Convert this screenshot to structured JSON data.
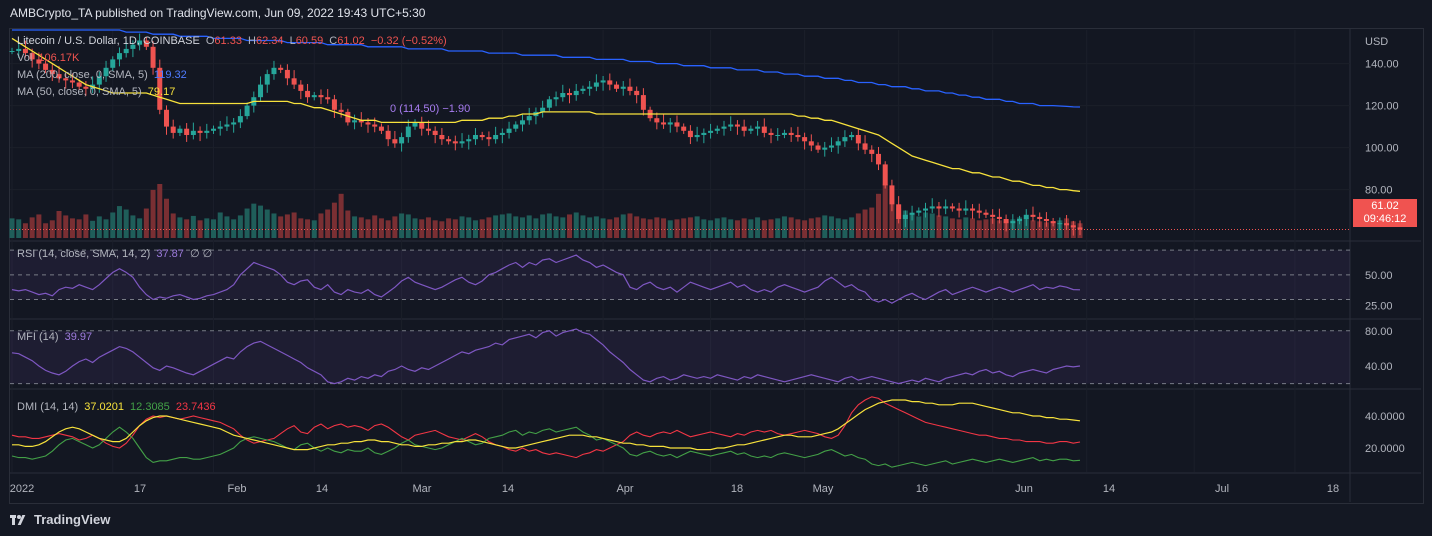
{
  "header": {
    "published": "AMBCrypto_TA published on TradingView.com, Jun 09, 2022 19:43 UTC+5:30"
  },
  "footer": {
    "brand": "TradingView",
    "icon": "tradingview-logo-icon"
  },
  "colors": {
    "up": "#26a69a",
    "down": "#ef5350",
    "ma200": "#2962ff",
    "ma50": "#f7e23c",
    "rsi": "#7e57c2",
    "mfi": "#7e57c2",
    "adx": "#f7e23c",
    "plusdi": "#43a047",
    "minusdi": "#f23645",
    "bg": "#131722",
    "grid": "#1e222d"
  },
  "main_legend": {
    "symbol": "Litecoin / U.S. Dollar, 1D, COINBASE",
    "o_label": "O",
    "o": "61.33",
    "h_label": "H",
    "h": "62.34",
    "l_label": "L",
    "l": "60.59",
    "c_label": "C",
    "c": "61.02",
    "change": "−0.32 (−0.52%)",
    "vol_label": "Vol",
    "vol": "106.17K",
    "ma200_label": "MA (200, close, 0, SMA, 5)",
    "ma200": "119.32",
    "ma50_label": "MA (50, close, 0, SMA, 5)",
    "ma50": "79.17",
    "overlay_label": "0 (114.50) −1.90"
  },
  "price_tag": {
    "price": "61.02",
    "countdown": "09:46:12"
  },
  "rsi_legend": {
    "label": "RSI (14, close, SMA, 14, 2)",
    "value": "37.87",
    "extra": "∅ ∅"
  },
  "mfi_legend": {
    "label": "MFI (14)",
    "value": "39.97"
  },
  "dmi_legend": {
    "label": "DMI (14, 14)",
    "adx": "37.0201",
    "plus": "12.3085",
    "minus": "23.7436"
  },
  "chart_data": {
    "type": "line",
    "currency": "USD",
    "x_ticks": [
      "2022",
      "17",
      "Feb",
      "14",
      "Mar",
      "14",
      "Apr",
      "18",
      "May",
      "16",
      "Jun",
      "14",
      "Jul",
      "18"
    ],
    "price_axis": {
      "ticks": [
        "140.00",
        "120.00",
        "100.00",
        "80.00"
      ],
      "ylim": [
        56,
        156
      ]
    },
    "rsi_axis": {
      "ticks": [
        "50.00",
        "25.00"
      ],
      "ylim": [
        15,
        75
      ],
      "bands": [
        70,
        50,
        30
      ]
    },
    "mfi_axis": {
      "ticks": [
        "80.00",
        "40.00"
      ],
      "ylim": [
        15,
        90
      ],
      "bands": [
        80,
        20
      ]
    },
    "dmi_axis": {
      "ticks": [
        "40.0000",
        "20.0000"
      ],
      "ylim": [
        5,
        55
      ]
    },
    "price_close": [
      146,
      147,
      145,
      142,
      140,
      137,
      135,
      133,
      132,
      131,
      129,
      128,
      130,
      134,
      138,
      142,
      145,
      147,
      149,
      151,
      148,
      138,
      118,
      110,
      107,
      109,
      106,
      108,
      107,
      108,
      109,
      110,
      111,
      112,
      115,
      120,
      124,
      130,
      135,
      138,
      137,
      133,
      130,
      127,
      124,
      125,
      124,
      123,
      118,
      117,
      112,
      113,
      112,
      111,
      110,
      108,
      104,
      102,
      105,
      110,
      112,
      109,
      108,
      106,
      104,
      103,
      102,
      103,
      104,
      106,
      105,
      104,
      106,
      107,
      109,
      111,
      113,
      115,
      117,
      119,
      123,
      124,
      126,
      125,
      127,
      128,
      129,
      131,
      132,
      130,
      128,
      129,
      127,
      125,
      118,
      114,
      112,
      111,
      112,
      110,
      108,
      105,
      106,
      107,
      108,
      109,
      110,
      111,
      110,
      108,
      109,
      110,
      107,
      106,
      106,
      107,
      106,
      105,
      103,
      101,
      99,
      100,
      101,
      103,
      105,
      106,
      102,
      99,
      97,
      92,
      82,
      73,
      66,
      68,
      69,
      70,
      71,
      72,
      71,
      72,
      71,
      70,
      71,
      70,
      69,
      68,
      67,
      66,
      64,
      65,
      66,
      68,
      67,
      66,
      65,
      64,
      64,
      63,
      62,
      61
    ],
    "ma200": [
      165,
      164,
      163,
      162,
      161,
      160,
      160,
      159,
      159,
      158,
      158,
      157,
      157,
      157,
      156,
      156,
      156,
      155,
      155,
      155,
      155,
      154,
      154,
      154,
      154,
      153,
      153,
      153,
      153,
      153,
      152,
      152,
      152,
      152,
      152,
      151,
      151,
      151,
      151,
      151,
      151,
      150,
      150,
      150,
      150,
      150,
      150,
      149,
      149,
      149,
      149,
      149,
      149,
      148,
      148,
      148,
      148,
      148,
      148,
      147,
      147,
      147,
      147,
      147,
      147,
      146,
      146,
      146,
      146,
      146,
      146,
      145,
      145,
      145,
      145,
      145,
      144,
      144,
      144,
      144,
      144,
      144,
      143,
      143,
      143,
      143,
      143,
      142,
      142,
      142,
      142,
      142,
      141,
      141,
      141,
      141,
      140,
      140,
      140,
      140,
      139,
      139,
      139,
      139,
      138,
      138,
      138,
      138,
      137,
      137,
      137,
      137,
      136,
      136,
      136,
      135,
      135,
      135,
      134,
      134,
      134,
      133,
      133,
      133,
      132,
      132,
      131,
      131,
      131,
      130,
      130,
      129,
      129,
      129,
      128,
      128,
      127,
      127,
      127,
      126,
      126,
      125,
      125,
      124,
      124,
      123,
      123,
      123,
      122,
      122,
      121,
      121,
      121,
      120,
      120,
      120,
      119.8,
      119.6,
      119.4,
      119.32
    ],
    "ma50": [
      152,
      150,
      148,
      146,
      144,
      142,
      140,
      138,
      136,
      134,
      132,
      130,
      129,
      128,
      127,
      126,
      126,
      126,
      126,
      126,
      126,
      125,
      124,
      123,
      122,
      121,
      121,
      121,
      121,
      121,
      121,
      121,
      121,
      121,
      121,
      121,
      122,
      122,
      122,
      122,
      122,
      122,
      121,
      121,
      120,
      119,
      119,
      118,
      117,
      116,
      115,
      114,
      113,
      113,
      113,
      112,
      112,
      112,
      112,
      112,
      112,
      112,
      112,
      112,
      112,
      112,
      112,
      113,
      113,
      113,
      113,
      114,
      114,
      114,
      115,
      115,
      116,
      116,
      116,
      117,
      117,
      117,
      117,
      117,
      117,
      117,
      117,
      116,
      116,
      116,
      116,
      116,
      116,
      116,
      116,
      116,
      116,
      116,
      116,
      116,
      116,
      116,
      116,
      116,
      116,
      116,
      116,
      116,
      116,
      116,
      116,
      116,
      116,
      116,
      116,
      116,
      116,
      115,
      115,
      114,
      114,
      113,
      113,
      112,
      111,
      110,
      109,
      108,
      107,
      106,
      104,
      102,
      100,
      98,
      96,
      95,
      94,
      93,
      92,
      91,
      90,
      90,
      89,
      88,
      88,
      87,
      86,
      86,
      85,
      84,
      84,
      83,
      82,
      82,
      81,
      81,
      80,
      80,
      79.5,
      79.17
    ],
    "rsi": [
      38,
      37,
      38,
      36,
      34,
      35,
      33,
      38,
      40,
      39,
      42,
      40,
      38,
      42,
      47,
      52,
      55,
      52,
      48,
      40,
      34,
      30,
      32,
      31,
      33,
      34,
      32,
      30,
      31,
      33,
      34,
      36,
      38,
      42,
      50,
      55,
      60,
      58,
      56,
      54,
      50,
      44,
      42,
      45,
      46,
      40,
      38,
      42,
      36,
      34,
      38,
      36,
      35,
      38,
      34,
      32,
      36,
      40,
      45,
      48,
      44,
      42,
      40,
      38,
      40,
      43,
      46,
      48,
      44,
      42,
      45,
      50,
      52,
      55,
      58,
      60,
      56,
      60,
      58,
      62,
      63,
      60,
      62,
      64,
      66,
      62,
      60,
      56,
      58,
      55,
      52,
      50,
      40,
      38,
      42,
      44,
      40,
      38,
      40,
      36,
      40,
      44,
      42,
      40,
      38,
      40,
      42,
      44,
      40,
      42,
      38,
      36,
      38,
      36,
      40,
      42,
      40,
      38,
      36,
      38,
      40,
      45,
      48,
      44,
      40,
      42,
      38,
      36,
      30,
      28,
      30,
      27,
      30,
      33,
      35,
      32,
      30,
      33,
      36,
      38,
      34,
      36,
      38,
      40,
      38,
      36,
      38,
      40,
      38,
      36,
      38,
      40,
      42,
      38,
      40,
      39,
      41,
      40,
      38,
      37.87
    ],
    "mfi": [
      55,
      54,
      50,
      46,
      40,
      35,
      32,
      30,
      34,
      40,
      45,
      48,
      44,
      50,
      54,
      58,
      62,
      60,
      56,
      50,
      44,
      38,
      35,
      40,
      38,
      35,
      32,
      30,
      34,
      38,
      42,
      46,
      50,
      48,
      56,
      62,
      66,
      68,
      64,
      60,
      56,
      52,
      48,
      44,
      38,
      34,
      30,
      22,
      20,
      22,
      26,
      24,
      28,
      26,
      30,
      28,
      34,
      36,
      40,
      36,
      34,
      38,
      36,
      40,
      44,
      48,
      52,
      56,
      54,
      58,
      60,
      62,
      66,
      64,
      70,
      72,
      74,
      76,
      72,
      78,
      80,
      74,
      78,
      80,
      82,
      78,
      76,
      70,
      64,
      56,
      50,
      44,
      36,
      30,
      24,
      22,
      26,
      28,
      24,
      26,
      30,
      28,
      26,
      28,
      26,
      30,
      28,
      26,
      24,
      28,
      26,
      30,
      28,
      26,
      24,
      22,
      24,
      26,
      28,
      30,
      28,
      26,
      24,
      22,
      26,
      28,
      24,
      26,
      28,
      26,
      24,
      22,
      20,
      22,
      24,
      22,
      26,
      24,
      22,
      26,
      28,
      30,
      32,
      30,
      34,
      36,
      32,
      34,
      30,
      28,
      32,
      34,
      36,
      34,
      32,
      36,
      38,
      40,
      39,
      39.97
    ],
    "adx": [
      22,
      22,
      21,
      21,
      22,
      24,
      27,
      30,
      32,
      33,
      32,
      30,
      28,
      26,
      25,
      24,
      24,
      26,
      30,
      34,
      37,
      39,
      40,
      40,
      39,
      38,
      37,
      36,
      35,
      34,
      33,
      32,
      30,
      28,
      27,
      26,
      25,
      24,
      23,
      22,
      21,
      20,
      19,
      19,
      19,
      20,
      21,
      22,
      22,
      23,
      23,
      24,
      24,
      25,
      25,
      24,
      24,
      23,
      22,
      22,
      21,
      21,
      22,
      22,
      23,
      23,
      24,
      24,
      25,
      25,
      24,
      23,
      22,
      21,
      20,
      20,
      21,
      22,
      23,
      24,
      25,
      26,
      27,
      28,
      28,
      28,
      27,
      27,
      26,
      25,
      24,
      23,
      23,
      22,
      22,
      21,
      21,
      21,
      20,
      20,
      20,
      20,
      19,
      19,
      19,
      20,
      20,
      21,
      22,
      22,
      23,
      24,
      25,
      26,
      27,
      28,
      28,
      27,
      27,
      27,
      28,
      29,
      30,
      32,
      35,
      38,
      41,
      44,
      46,
      48,
      49,
      50,
      50,
      50,
      49,
      49,
      48,
      48,
      47,
      47,
      47,
      48,
      48,
      48,
      47,
      46,
      45,
      44,
      43,
      42,
      42,
      41,
      40,
      40,
      39,
      39,
      38,
      38,
      37.5,
      37.02
    ],
    "plus_di": [
      15,
      14,
      14,
      13,
      14,
      15,
      18,
      22,
      25,
      26,
      24,
      22,
      20,
      22,
      26,
      30,
      33,
      30,
      26,
      20,
      14,
      11,
      12,
      12,
      13,
      14,
      14,
      13,
      13,
      14,
      15,
      16,
      18,
      20,
      24,
      26,
      27,
      26,
      25,
      24,
      22,
      20,
      19,
      22,
      23,
      20,
      18,
      20,
      18,
      17,
      19,
      18,
      18,
      20,
      17,
      16,
      18,
      20,
      23,
      25,
      22,
      21,
      20,
      19,
      20,
      22,
      24,
      26,
      24,
      22,
      23,
      26,
      27,
      28,
      30,
      31,
      28,
      30,
      29,
      31,
      32,
      30,
      31,
      32,
      33,
      30,
      28,
      25,
      26,
      24,
      22,
      20,
      16,
      15,
      17,
      18,
      16,
      15,
      16,
      14,
      16,
      18,
      17,
      16,
      15,
      16,
      17,
      18,
      16,
      17,
      15,
      14,
      15,
      14,
      16,
      17,
      16,
      15,
      14,
      15,
      16,
      18,
      19,
      17,
      15,
      16,
      14,
      13,
      10,
      9,
      10,
      8,
      9,
      10,
      11,
      10,
      9,
      10,
      11,
      12,
      10,
      11,
      12,
      13,
      12,
      11,
      12,
      13,
      12,
      11,
      12,
      13,
      14,
      12,
      13,
      12,
      13,
      13,
      12,
      12.31
    ],
    "minus_di": [
      28,
      27,
      27,
      26,
      26,
      27,
      28,
      29,
      28,
      27,
      25,
      26,
      28,
      26,
      23,
      21,
      20,
      23,
      28,
      34,
      38,
      40,
      39,
      40,
      39,
      38,
      39,
      40,
      39,
      38,
      37,
      36,
      34,
      32,
      28,
      25,
      23,
      24,
      25,
      26,
      29,
      32,
      34,
      30,
      29,
      33,
      35,
      32,
      34,
      35,
      33,
      34,
      33,
      31,
      34,
      35,
      33,
      30,
      27,
      25,
      28,
      29,
      30,
      31,
      29,
      27,
      26,
      25,
      27,
      29,
      27,
      24,
      22,
      21,
      19,
      18,
      20,
      18,
      19,
      17,
      16,
      17,
      16,
      15,
      14,
      16,
      17,
      19,
      18,
      20,
      22,
      24,
      28,
      30,
      28,
      27,
      29,
      30,
      29,
      31,
      29,
      27,
      28,
      29,
      30,
      29,
      28,
      27,
      29,
      28,
      30,
      31,
      30,
      31,
      29,
      28,
      29,
      30,
      31,
      30,
      29,
      27,
      26,
      28,
      34,
      42,
      47,
      50,
      52,
      51,
      48,
      46,
      44,
      42,
      40,
      38,
      36,
      35,
      34,
      33,
      32,
      31,
      30,
      29,
      28,
      28,
      27,
      26,
      26,
      25,
      25,
      24,
      24,
      24,
      23,
      23,
      24,
      24,
      23,
      23.74
    ],
    "volume": [
      40,
      38,
      30,
      42,
      48,
      30,
      36,
      55,
      46,
      40,
      38,
      48,
      35,
      44,
      38,
      52,
      65,
      58,
      46,
      40,
      60,
      98,
      110,
      80,
      50,
      42,
      38,
      45,
      36,
      40,
      38,
      52,
      44,
      38,
      46,
      60,
      70,
      66,
      58,
      50,
      44,
      48,
      52,
      40,
      38,
      36,
      50,
      58,
      72,
      90,
      56,
      44,
      42,
      38,
      46,
      40,
      36,
      44,
      50,
      48,
      40,
      38,
      42,
      36,
      34,
      40,
      38,
      44,
      42,
      36,
      38,
      42,
      46,
      48,
      50,
      44,
      42,
      46,
      40,
      48,
      50,
      44,
      42,
      48,
      52,
      46,
      42,
      44,
      40,
      38,
      42,
      48,
      50,
      44,
      40,
      38,
      42,
      40,
      36,
      38,
      40,
      42,
      44,
      38,
      36,
      40,
      42,
      38,
      36,
      40,
      38,
      42,
      36,
      38,
      40,
      44,
      42,
      38,
      36,
      40,
      42,
      46,
      44,
      40,
      38,
      42,
      50,
      58,
      62,
      90,
      110,
      80,
      60,
      56,
      48,
      44,
      52,
      50,
      46,
      44,
      40,
      38,
      42,
      40,
      36,
      38,
      40,
      36,
      34,
      38,
      42,
      40,
      36,
      34,
      32,
      34,
      36,
      40,
      34,
      30
    ]
  }
}
